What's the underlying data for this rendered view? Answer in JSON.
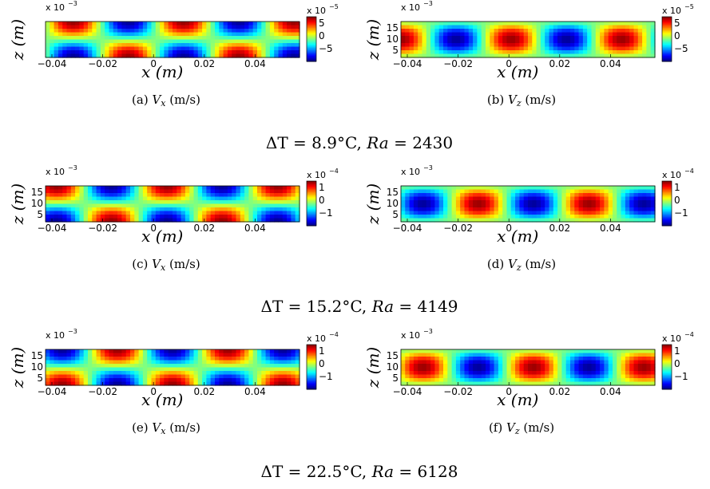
{
  "chart_data": [
    {
      "type": "heatmap",
      "panel": "(a)",
      "caption": "V",
      "sub": "x",
      "unit": " (m/s)",
      "field": "vx",
      "amp": 1,
      "phase": 0,
      "xlabel": "x (m)",
      "ylabel": "z (m)",
      "xticks": [
        "−0.04",
        "−0.02",
        "0",
        "0.02",
        "0.04"
      ],
      "yticks": [],
      "xexp": "x 10",
      "xexp_pow": "−3",
      "cbar_exp": "x 10",
      "cbar_pow": "−5",
      "cbar_ticks": [
        "5",
        "0",
        "−5"
      ]
    },
    {
      "type": "heatmap",
      "panel": "(b)",
      "caption": "V",
      "sub": "z",
      "unit": " (m/s)",
      "field": "vz",
      "amp": 1,
      "phase": 0,
      "xlabel": "x (m)",
      "ylabel": "z (m)",
      "xticks": [
        "−0.04",
        "−0.02",
        "0",
        "0.02",
        "0.04"
      ],
      "yticks": [
        "15",
        "10",
        "5"
      ],
      "xexp": "x 10",
      "xexp_pow": "−3",
      "cbar_exp": "x 10",
      "cbar_pow": "−5",
      "cbar_ticks": [
        "5",
        "0",
        "−5"
      ]
    },
    {
      "type": "heatmap",
      "panel": "(c)",
      "caption": "V",
      "sub": "x",
      "unit": " (m/s)",
      "field": "vx",
      "amp": 1,
      "phase": 0.3,
      "xlabel": "x (m)",
      "ylabel": "z (m)",
      "xticks": [
        "−0.04",
        "−0.02",
        "0",
        "0.02",
        "0.04"
      ],
      "yticks": [
        "15",
        "10",
        "5"
      ],
      "xexp": "x 10",
      "xexp_pow": "−3",
      "cbar_exp": "x 10",
      "cbar_pow": "−4",
      "cbar_ticks": [
        "1",
        "0",
        "−1"
      ]
    },
    {
      "type": "heatmap",
      "panel": "(d)",
      "caption": "V",
      "sub": "z",
      "unit": " (m/s)",
      "field": "vz",
      "amp": 1,
      "phase": 0.6,
      "xlabel": "x (m)",
      "ylabel": "z (m)",
      "xticks": [
        "−0.04",
        "−0.02",
        "0",
        "0.02",
        "0.04"
      ],
      "yticks": [
        "15",
        "10",
        "5"
      ],
      "xexp": "x 10",
      "xexp_pow": "−3",
      "cbar_exp": "x 10",
      "cbar_pow": "−4",
      "cbar_ticks": [
        "1",
        "0",
        "−1"
      ]
    },
    {
      "type": "heatmap",
      "panel": "(e)",
      "caption": "V",
      "sub": "x",
      "unit": " (m/s)",
      "field": "vx",
      "amp": 1,
      "phase": 1.2,
      "xlabel": "x (m)",
      "ylabel": "z (m)",
      "xticks": [
        "−0.04",
        "−0.02",
        "0",
        "0.02",
        "0.04"
      ],
      "yticks": [
        "15",
        "10",
        "5"
      ],
      "xexp": "x 10",
      "xexp_pow": "−3",
      "cbar_exp": "x 10",
      "cbar_pow": "−4",
      "cbar_ticks": [
        "1",
        "0",
        "−1"
      ]
    },
    {
      "type": "heatmap",
      "panel": "(f)",
      "caption": "V",
      "sub": "z",
      "unit": " (m/s)",
      "field": "vz",
      "amp": 1,
      "phase": 1.6,
      "xlabel": "x (m)",
      "ylabel": "z (m)",
      "xticks": [
        "−0.04",
        "−0.02",
        "0",
        "0.02",
        "0.04"
      ],
      "yticks": [
        "15",
        "10",
        "5"
      ],
      "xexp": "x 10",
      "xexp_pow": "−3",
      "cbar_exp": "x 10",
      "cbar_pow": "−4",
      "cbar_ticks": [
        "1",
        "0",
        "−1"
      ]
    }
  ],
  "rows": [
    {
      "dt": "ΔT = 8.9°C, ",
      "ra_label": "Ra",
      "ra_value": " = 2430"
    },
    {
      "dt": "ΔT = 15.2°C, ",
      "ra_label": "Ra",
      "ra_value": " = 4149"
    },
    {
      "dt": "ΔT = 22.5°C, ",
      "ra_label": "Ra",
      "ra_value": " = 6128"
    }
  ],
  "colors": {
    "low": "#00008f",
    "mid": "#80ff80",
    "high": "#800000"
  }
}
